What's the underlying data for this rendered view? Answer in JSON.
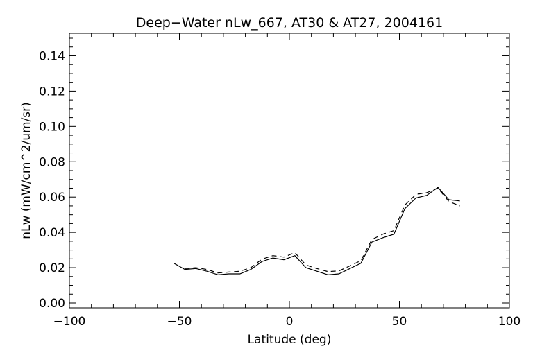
{
  "chart_data": {
    "type": "line",
    "title": "Deep−Water nLw_667, AT30 & AT27, 2004161",
    "xlabel": "Latitude (deg)",
    "ylabel": "nLw (mW/cm^2/um/sr)",
    "xlim": [
      -100,
      100
    ],
    "ylim": [
      0.0,
      0.15
    ],
    "x_ticks": [
      -100,
      -50,
      0,
      50,
      100
    ],
    "x_tick_labels": [
      "−100",
      "−50",
      "0",
      "50",
      "100"
    ],
    "y_ticks": [
      0.0,
      0.02,
      0.04,
      0.06,
      0.08,
      0.1,
      0.12,
      0.14
    ],
    "y_tick_labels": [
      "0.00",
      "0.02",
      "0.04",
      "0.06",
      "0.08",
      "0.10",
      "0.12",
      "0.14"
    ],
    "grid": false,
    "series": [
      {
        "style": "solid",
        "x": [
          -52.5,
          -47.5,
          -42.5,
          -37.5,
          -32.5,
          -27.5,
          -22.5,
          -17.5,
          -12.5,
          -7.5,
          -2.5,
          2.5,
          7.5,
          12.5,
          17.5,
          22.5,
          27.5,
          32.5,
          37.5,
          42.5,
          47.5,
          52.5,
          57.5,
          62.5,
          67.5,
          72.5,
          77.5
        ],
        "values": [
          0.0225,
          0.019,
          0.0195,
          0.018,
          0.016,
          0.0165,
          0.0165,
          0.019,
          0.0235,
          0.0255,
          0.0245,
          0.0268,
          0.02,
          0.018,
          0.016,
          0.0165,
          0.0195,
          0.0225,
          0.0345,
          0.037,
          0.039,
          0.0535,
          0.0595,
          0.061,
          0.0655,
          0.0585,
          0.0578
        ]
      },
      {
        "style": "dashed",
        "x": [
          -47.5,
          -42.5,
          -37.5,
          -32.5,
          -27.5,
          -22.5,
          -17.5,
          -12.5,
          -7.5,
          -2.5,
          2.5,
          7.5,
          12.5,
          17.5,
          22.5,
          27.5,
          32.5,
          37.5,
          42.5,
          47.5,
          52.5,
          57.5,
          62.5,
          67.5,
          72.5,
          77.5
        ],
        "values": [
          0.0195,
          0.02,
          0.019,
          0.017,
          0.0175,
          0.018,
          0.02,
          0.0248,
          0.0268,
          0.026,
          0.0285,
          0.0215,
          0.0195,
          0.0178,
          0.0182,
          0.021,
          0.024,
          0.036,
          0.039,
          0.041,
          0.0555,
          0.0615,
          0.0625,
          0.065,
          0.0575,
          0.055
        ]
      }
    ]
  }
}
